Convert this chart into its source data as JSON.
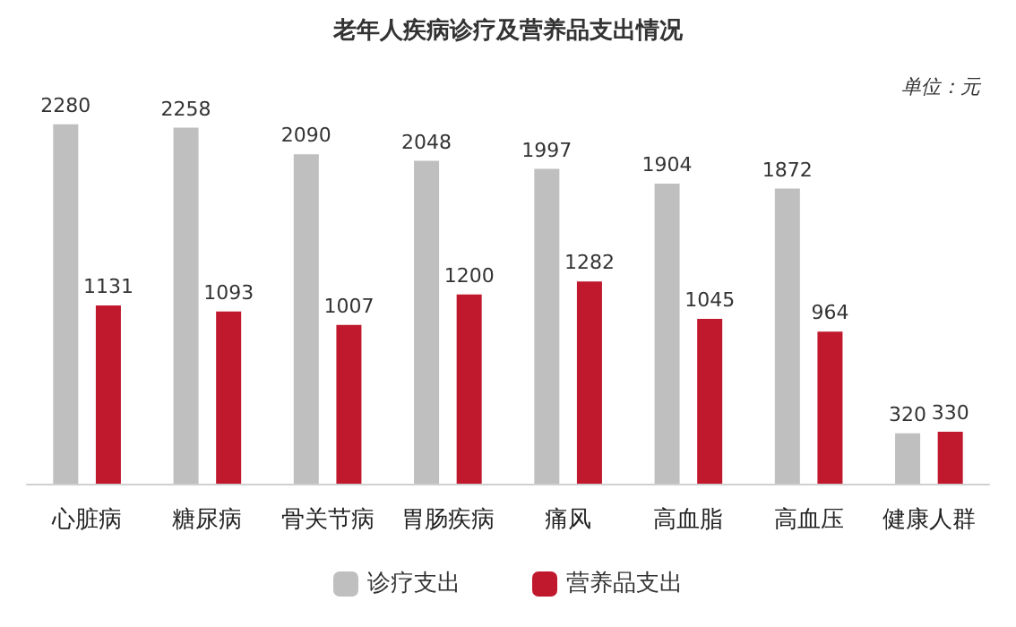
{
  "chart_data": {
    "type": "bar",
    "title": "老年人疾病诊疗及营养品支出情况",
    "annotations": [
      "单位：元"
    ],
    "categories": [
      "心脏病",
      "糖尿病",
      "骨关节病",
      "胃肠疾病",
      "痛风",
      "高血脂",
      "高血压",
      "健康人群"
    ],
    "series": [
      {
        "name": "诊疗支出",
        "color": "#bfbfbf",
        "values": [
          2280,
          2258,
          2090,
          2048,
          1997,
          1904,
          1872,
          320
        ]
      },
      {
        "name": "营养品支出",
        "color": "#c0182c",
        "values": [
          1131,
          1093,
          1007,
          1200,
          1282,
          1045,
          964,
          330
        ]
      }
    ],
    "data_labels": true,
    "legend": "bottom",
    "grid": false
  }
}
